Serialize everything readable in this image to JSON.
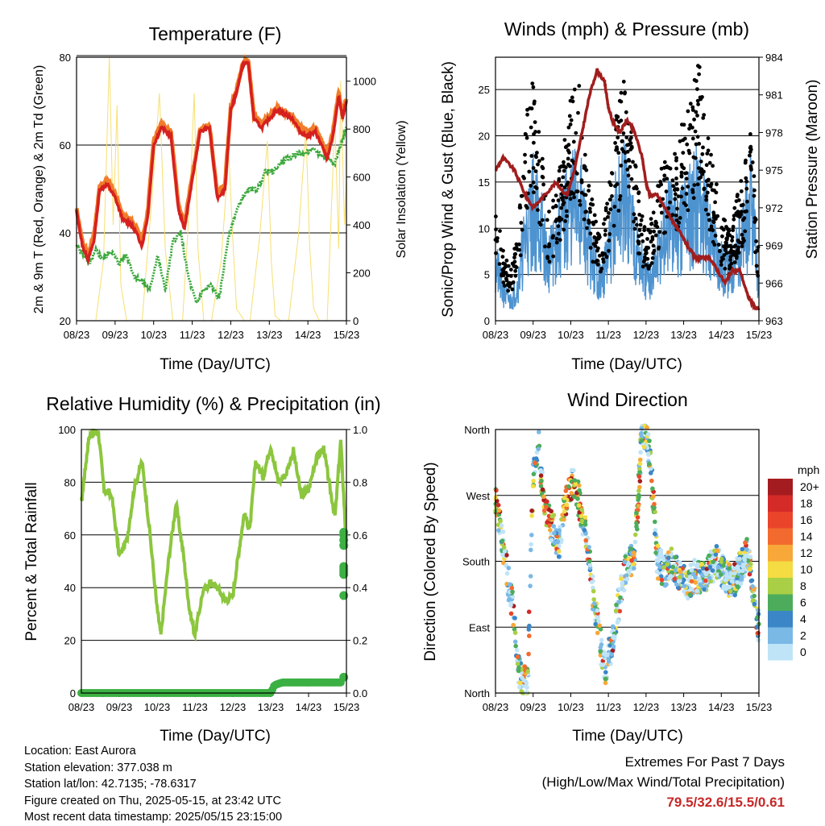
{
  "panels": {
    "temperature": {
      "title": "Temperature (F)",
      "xlabel": "Time (Day/UTC)",
      "ylabel_left": "2m & 9m T (Red, Orange) & 2m Td (Green)",
      "ylabel_right": "Solar Insolation (Yellow)"
    },
    "winds": {
      "title": "Winds (mph) & Pressure (mb)",
      "xlabel": "Time (Day/UTC)",
      "ylabel_left": "Sonic/Prop Wind & Gust (Blue, Black)",
      "ylabel_right": "Station Pressure (Maroon)"
    },
    "humidity": {
      "title": "Relative Humidity (%) & Precipitation (in)",
      "xlabel": "Time (Day/UTC)",
      "ylabel_left": "Percent & Total Rainfall"
    },
    "direction": {
      "title": "Wind Direction",
      "xlabel": "Time (Day/UTC)",
      "ylabel_left": "Direction (Colored By Speed)",
      "legend_title": "mph"
    }
  },
  "station": {
    "location": "Location: East Aurora",
    "elevation": "Station elevation: 377.038 m",
    "latlon": "Station lat/lon: 42.7135; -78.6317",
    "created": "Figure created on Thu, 2025-05-15, at 23:42 UTC",
    "latest": "Most recent data timestamp: 2025/05/15 23:15:00"
  },
  "extremes": {
    "title": "Extremes For Past 7 Days",
    "subtitle": "(High/Low/Max Wind/Total Precipitation)",
    "values": "79.5/32.6/15.5/0.61"
  },
  "colors": {
    "temp2m": "#d62020",
    "temp9m": "#f07d2a",
    "dewpoint": "#3ca83c",
    "solar": "#f7df70",
    "wind": "#4d93d0",
    "gust": "#000000",
    "pressure": "#a11d1d",
    "rh": "#8cc63e",
    "precip": "#3cb043"
  },
  "chart_data": [
    {
      "type": "line",
      "id": "temperature",
      "title": "Temperature (F)",
      "xlabel": "Time (Day/UTC)",
      "ylabel": "2m & 9m T (Red, Orange) & 2m Td (Green)",
      "y2label": "Solar Insolation (Yellow)",
      "x_ticks": [
        "08/23",
        "09/23",
        "10/23",
        "11/23",
        "12/23",
        "13/23",
        "14/23",
        "15/23"
      ],
      "xlim": [
        0,
        7
      ],
      "ylim": [
        20,
        80
      ],
      "y_ticks": [
        20,
        40,
        60,
        80
      ],
      "y2lim": [
        0,
        1100
      ],
      "y2_ticks": [
        0,
        200,
        400,
        600,
        800,
        1000
      ],
      "grid": true,
      "series": [
        {
          "name": "2m T",
          "color": "#d62020",
          "x": [
            0,
            0.15,
            0.3,
            0.45,
            0.6,
            0.8,
            1.0,
            1.2,
            1.4,
            1.55,
            1.7,
            1.85,
            2.0,
            2.2,
            2.45,
            2.65,
            2.8,
            3.0,
            3.2,
            3.45,
            3.65,
            3.85,
            4.0,
            4.15,
            4.3,
            4.45,
            4.6,
            4.8,
            5.0,
            5.2,
            5.4,
            5.6,
            5.8,
            6.0,
            6.2,
            6.35,
            6.5,
            6.65,
            6.8,
            6.9,
            7.0
          ],
          "y": [
            45,
            37,
            34,
            38,
            50,
            51,
            48,
            43,
            42,
            40,
            37,
            44,
            60,
            64,
            62,
            45,
            41,
            52,
            63,
            64,
            48,
            50,
            68,
            72,
            78,
            79,
            66,
            64,
            66,
            68,
            67,
            66,
            63,
            62,
            63,
            60,
            57,
            62,
            71,
            66,
            70
          ]
        },
        {
          "name": "9m T",
          "color": "#f07d2a",
          "x": [
            0,
            0.15,
            0.3,
            0.45,
            0.6,
            0.8,
            1.0,
            1.2,
            1.4,
            1.55,
            1.7,
            1.85,
            2.0,
            2.2,
            2.45,
            2.65,
            2.8,
            3.0,
            3.2,
            3.45,
            3.65,
            3.85,
            4.0,
            4.15,
            4.3,
            4.45,
            4.6,
            4.8,
            5.0,
            5.2,
            5.4,
            5.6,
            5.8,
            6.0,
            6.2,
            6.35,
            6.5,
            6.65,
            6.8,
            6.9,
            7.0
          ],
          "y": [
            45.5,
            38,
            35,
            39,
            50.5,
            52,
            49,
            44,
            43,
            41,
            38,
            45,
            61,
            65,
            63,
            46,
            42,
            53,
            63.5,
            64.5,
            49,
            51,
            68.5,
            72.5,
            78.5,
            79.5,
            67,
            65,
            66.5,
            68.5,
            67.5,
            66.5,
            64,
            63,
            64,
            61,
            58,
            63,
            72,
            67,
            70.5
          ]
        },
        {
          "name": "2m Td",
          "color": "#3ca83c",
          "x": [
            0,
            0.2,
            0.35,
            0.5,
            0.7,
            0.9,
            1.1,
            1.3,
            1.5,
            1.7,
            1.9,
            2.1,
            2.3,
            2.5,
            2.7,
            2.9,
            3.1,
            3.3,
            3.5,
            3.7,
            3.9,
            4.1,
            4.3,
            4.5,
            4.7,
            4.9,
            5.1,
            5.3,
            5.5,
            5.7,
            5.9,
            6.1,
            6.3,
            6.5,
            6.7,
            6.85,
            7.0
          ],
          "y": [
            37,
            35,
            33,
            36,
            34,
            36,
            33,
            35,
            30,
            29,
            27,
            35,
            27,
            38,
            40,
            30,
            24,
            27,
            28,
            25,
            37,
            44,
            48,
            50,
            50,
            54,
            54,
            56,
            57,
            58,
            58,
            59,
            58,
            57,
            56,
            60,
            64
          ]
        },
        {
          "name": "Solar Insolation",
          "axis": "y2",
          "color": "#f7df70",
          "x": [
            0,
            0.5,
            0.7,
            0.85,
            0.95,
            1.05,
            1.15,
            1.3,
            1.5,
            1.7,
            1.95,
            2.15,
            2.3,
            2.5,
            2.75,
            2.95,
            3.05,
            3.15,
            3.3,
            3.5,
            3.75,
            3.95,
            4.05,
            4.15,
            4.35,
            4.5,
            4.75,
            4.95,
            5.05,
            5.15,
            5.3,
            5.5,
            5.75,
            5.95,
            6.05,
            6.15,
            6.3,
            6.5,
            6.7,
            6.8,
            6.85,
            6.95,
            7.0
          ],
          "y": [
            0,
            0,
            250,
            1100,
            400,
            900,
            150,
            0,
            0,
            0,
            500,
            950,
            300,
            0,
            0,
            550,
            950,
            300,
            0,
            0,
            250,
            700,
            350,
            50,
            0,
            0,
            350,
            750,
            250,
            20,
            0,
            0,
            350,
            800,
            300,
            50,
            0,
            0,
            850,
            300,
            1000,
            400,
            600
          ]
        }
      ]
    },
    {
      "type": "line",
      "id": "winds",
      "title": "Winds (mph) & Pressure (mb)",
      "xlabel": "Time (Day/UTC)",
      "ylabel": "Sonic/Prop Wind & Gust (Blue, Black)",
      "y2label": "Station Pressure (Maroon)",
      "x_ticks": [
        "08/23",
        "09/23",
        "10/23",
        "11/23",
        "12/23",
        "13/23",
        "14/23",
        "15/23"
      ],
      "xlim": [
        0,
        7
      ],
      "ylim": [
        0,
        28.5
      ],
      "y_ticks": [
        0,
        5,
        10,
        15,
        20,
        25
      ],
      "y2lim": [
        963,
        984
      ],
      "y2_ticks": [
        963,
        966,
        969,
        972,
        975,
        978,
        981,
        984
      ],
      "grid": true,
      "series": [
        {
          "name": "Wind",
          "color": "#4d93d0",
          "x": [
            0,
            0.2,
            0.4,
            0.6,
            0.8,
            1.0,
            1.2,
            1.4,
            1.6,
            1.8,
            2.0,
            2.2,
            2.4,
            2.6,
            2.8,
            3.0,
            3.2,
            3.4,
            3.6,
            3.8,
            4.0,
            4.2,
            4.4,
            4.6,
            4.8,
            5.0,
            5.2,
            5.4,
            5.6,
            5.8,
            6.0,
            6.2,
            6.4,
            6.6,
            6.8,
            7.0
          ],
          "y": [
            6,
            3,
            2,
            4,
            9,
            12,
            10,
            6,
            8,
            10,
            12,
            13,
            9,
            6,
            4,
            7,
            11,
            13,
            11,
            7,
            4,
            5,
            8,
            10,
            10,
            11,
            12,
            13,
            10,
            8,
            6,
            5,
            7,
            9,
            12,
            3
          ]
        },
        {
          "name": "Gust",
          "color": "#000000",
          "x": [
            0,
            0.2,
            0.4,
            0.6,
            0.8,
            1.0,
            1.2,
            1.4,
            1.6,
            1.8,
            2.0,
            2.2,
            2.4,
            2.6,
            2.8,
            3.0,
            3.2,
            3.4,
            3.6,
            3.8,
            4.0,
            4.2,
            4.4,
            4.6,
            4.8,
            5.0,
            5.2,
            5.4,
            5.6,
            5.8,
            6.0,
            6.2,
            6.4,
            6.6,
            6.8,
            7.0
          ],
          "y": [
            12,
            7,
            5,
            9,
            20,
            25,
            18,
            11,
            13,
            17,
            23,
            24,
            17,
            11,
            8,
            13,
            20,
            24,
            20,
            13,
            9,
            11,
            15,
            17,
            17,
            20,
            22,
            26,
            19,
            15,
            11,
            9,
            12,
            15,
            19,
            6
          ]
        },
        {
          "name": "Station Pressure",
          "axis": "y2",
          "color": "#a11d1d",
          "x": [
            0,
            0.2,
            0.5,
            0.8,
            1.0,
            1.3,
            1.6,
            1.9,
            2.1,
            2.3,
            2.5,
            2.7,
            2.9,
            3.0,
            3.1,
            3.3,
            3.5,
            3.7,
            3.9,
            4.0,
            4.1,
            4.3,
            4.5,
            4.7,
            4.9,
            5.1,
            5.3,
            5.5,
            5.7,
            5.9,
            6.1,
            6.3,
            6.5,
            6.7,
            6.9,
            7.0
          ],
          "y": [
            975,
            976,
            975,
            973,
            972,
            973,
            974,
            973,
            975,
            978,
            981,
            983,
            982,
            980,
            979,
            978,
            979,
            978,
            976,
            974,
            973,
            973,
            972,
            971,
            970,
            969,
            968,
            968,
            968,
            967,
            966,
            967,
            967,
            965,
            964,
            964
          ]
        }
      ]
    },
    {
      "type": "line",
      "id": "humidity",
      "title": "Relative Humidity (%) & Precipitation (in)",
      "xlabel": "Time (Day/UTC)",
      "ylabel": "Percent & Total Rainfall",
      "x_ticks": [
        "08/23",
        "09/23",
        "10/23",
        "11/23",
        "12/23",
        "13/23",
        "14/23",
        "15/23"
      ],
      "xlim": [
        0,
        7
      ],
      "ylim": [
        0,
        100
      ],
      "y_ticks": [
        0,
        20,
        40,
        60,
        80,
        100
      ],
      "y2lim": [
        0,
        1.0
      ],
      "y2_ticks": [
        0.0,
        0.2,
        0.4,
        0.6,
        0.8,
        1.0
      ],
      "grid": true,
      "series": [
        {
          "name": "Relative Humidity",
          "color": "#8cc63e",
          "x": [
            0,
            0.1,
            0.2,
            0.3,
            0.45,
            0.6,
            0.8,
            1.0,
            1.2,
            1.4,
            1.6,
            1.8,
            2.0,
            2.1,
            2.3,
            2.5,
            2.7,
            2.85,
            3.0,
            3.2,
            3.4,
            3.6,
            3.8,
            4.0,
            4.15,
            4.3,
            4.45,
            4.6,
            4.8,
            5.0,
            5.2,
            5.4,
            5.6,
            5.8,
            6.0,
            6.2,
            6.4,
            6.55,
            6.7,
            6.85,
            7.0
          ],
          "y": [
            72,
            85,
            97,
            99,
            99,
            77,
            75,
            52,
            58,
            78,
            88,
            62,
            32,
            22,
            50,
            72,
            52,
            32,
            22,
            38,
            42,
            40,
            35,
            37,
            53,
            68,
            62,
            88,
            82,
            94,
            80,
            83,
            92,
            75,
            77,
            89,
            93,
            79,
            67,
            96,
            55
          ]
        },
        {
          "name": "Total Precipitation",
          "axis": "y2",
          "color": "#3cb043",
          "x": [
            0,
            1,
            2,
            3,
            4,
            5,
            5.1,
            5.3,
            5.5,
            6.0,
            6.5,
            6.85,
            6.9,
            6.95,
            7.0
          ],
          "y": [
            0,
            0,
            0,
            0,
            0,
            0,
            0.03,
            0.04,
            0.04,
            0.04,
            0.04,
            0.04,
            0.06,
            0.47,
            0.61
          ]
        }
      ]
    },
    {
      "type": "scatter",
      "id": "direction",
      "title": "Wind Direction",
      "xlabel": "Time (Day/UTC)",
      "ylabel": "Direction (Colored By Speed)",
      "x_ticks": [
        "08/23",
        "09/23",
        "10/23",
        "11/23",
        "12/23",
        "13/23",
        "14/23",
        "15/23"
      ],
      "xlim": [
        0,
        7
      ],
      "ylim": [
        0,
        360
      ],
      "y_tick_labels": [
        "North",
        "East",
        "South",
        "West",
        "North"
      ],
      "y_ticks": [
        0,
        90,
        180,
        270,
        360
      ],
      "grid": true,
      "legend": {
        "title": "mph",
        "labels": [
          "20+",
          "18",
          "16",
          "14",
          "12",
          "10",
          "8",
          "6",
          "4",
          "2",
          "0"
        ],
        "colors": [
          "#a51c20",
          "#d42a28",
          "#ea452b",
          "#f26a2e",
          "#f8a838",
          "#f4dc42",
          "#a8cf45",
          "#4cac5c",
          "#3b86c6",
          "#7ab9e6",
          "#bfe4f7"
        ],
        "position": "right"
      },
      "series": [
        {
          "name": "Direction",
          "x": [
            0.05,
            0.2,
            0.35,
            0.5,
            0.6,
            0.7,
            0.85,
            1.0,
            1.15,
            1.3,
            1.5,
            1.7,
            1.9,
            2.1,
            2.4,
            2.6,
            2.9,
            3.1,
            3.3,
            3.5,
            3.7,
            3.9,
            4.1,
            4.3,
            4.5,
            4.7,
            4.9,
            5.1,
            5.3,
            5.5,
            5.7,
            5.9,
            6.1,
            6.3,
            6.5,
            6.7,
            6.9
          ],
          "y": [
            250,
            200,
            150,
            100,
            30,
            20,
            12,
            300,
            340,
            250,
            230,
            200,
            275,
            290,
            220,
            130,
            30,
            70,
            130,
            175,
            190,
            365,
            330,
            180,
            165,
            180,
            160,
            150,
            160,
            155,
            170,
            180,
            160,
            150,
            170,
            190,
            120
          ]
        }
      ]
    }
  ]
}
